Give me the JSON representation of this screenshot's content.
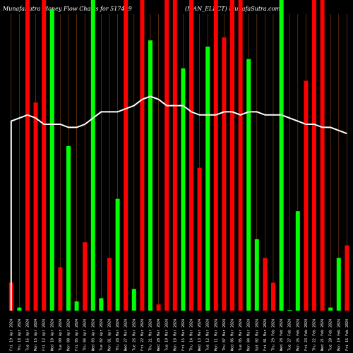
{
  "header": {
    "left": "MunafaSutra  Money Flow  Charts for 517449",
    "right": "(MAN_ELECT)  MunafaSutra.com"
  },
  "colors": {
    "background": "#000000",
    "up": "#00ff00",
    "down": "#ff0000",
    "line": "#ffffff",
    "grid": "#8b4513"
  },
  "chart_data": {
    "type": "bar",
    "title": "MunafaSutra  Money Flow  Charts for 517449",
    "categories": [
      "Fri 19 Apr 2024",
      "Thu 18 Apr 2024",
      "Tue 16 Apr 2024",
      "Mon 15 Apr 2024",
      "Fri 12 Apr 2024",
      "Wed 10 Apr 2024",
      "Tue 09 Apr 2024",
      "Mon 08 Apr 2024",
      "Fri 05 Apr 2024",
      "Thu 04 Apr 2024",
      "Wed 03 Apr 2024",
      "Tue 02 Apr 2024",
      "Mon 01 Apr 2024",
      "Thu 28 Mar 2024",
      "Wed 27 Mar 2024",
      "Tue 26 Mar 2024",
      "Fri 22 Mar 2024",
      "Thu 21 Mar 2024",
      "Wed 20 Mar 2024",
      "Tue 19 Mar 2024",
      "Mon 18 Mar 2024",
      "Fri 15 Mar 2024",
      "Thu 14 Mar 2024",
      "Wed 13 Mar 2024",
      "Tue 12 Mar 2024",
      "Mon 11 Mar 2024",
      "Thu 07 Mar 2024",
      "Wed 06 Mar 2024",
      "Tue 05 Mar 2024",
      "Mon 04 Mar 2024",
      "Sat 02 Mar 2024",
      "Fri 01 Mar 2024",
      "Thu 29 Feb 2024",
      "Wed 28 Feb 2024",
      "Tue 27 Feb 2024",
      "Mon 26 Feb 2024",
      "Fri 23 Feb 2024",
      "Thu 22 Feb 2024",
      "Wed 21 Feb 2024",
      "Tue 20 Feb 2024",
      "Mon 19 Feb 2024",
      "Fri 16 Feb 2024"
    ],
    "series": [
      {
        "direction": [
          "down",
          "up",
          "down",
          "down",
          "down",
          "up",
          "down",
          "up",
          "up",
          "down",
          "up",
          "up",
          "down",
          "up",
          "down",
          "up",
          "down",
          "up",
          "down",
          "down",
          "down",
          "up",
          "down",
          "down",
          "up",
          "down",
          "down",
          "down",
          "down",
          "up",
          "up",
          "down",
          "down",
          "up",
          "up",
          "up",
          "down",
          "down",
          "down",
          "up",
          "up",
          "down"
        ],
        "values": [
          9,
          1,
          100,
          67,
          100,
          97,
          14,
          53,
          3,
          22,
          100,
          4,
          17,
          36,
          100,
          7,
          100,
          87,
          2,
          100,
          100,
          78,
          100,
          46,
          85,
          100,
          88,
          100,
          100,
          81,
          23,
          17,
          9,
          100,
          0,
          32,
          74,
          100,
          100,
          1,
          17,
          21
        ],
        "line": [
          61,
          62,
          63,
          62,
          60,
          60,
          60,
          59,
          59,
          60,
          62,
          64,
          64,
          64,
          65,
          66,
          68,
          69,
          68,
          66,
          66,
          66,
          64,
          63,
          63,
          63,
          64,
          64,
          63,
          64,
          64,
          63,
          63,
          63,
          62,
          61,
          60,
          60,
          59,
          59,
          58,
          57
        ]
      }
    ],
    "ylim": [
      0,
      100
    ],
    "line_ylim": [
      0,
      100
    ],
    "grid": true
  }
}
